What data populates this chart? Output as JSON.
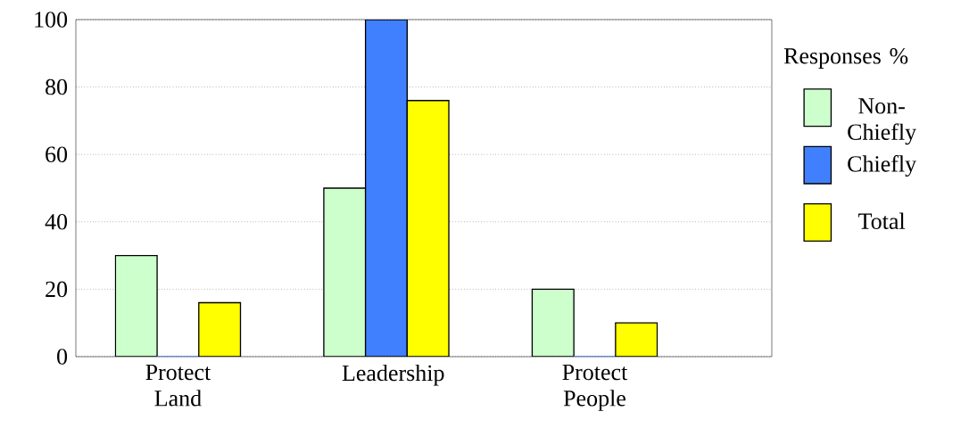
{
  "chart_data": {
    "type": "bar",
    "legend_title": "Responses %",
    "categories": [
      "Protect Land",
      "Leadership",
      "Protect People"
    ],
    "series": [
      {
        "name": "Non-Chiefly",
        "color": "#ccffcc",
        "values": [
          30,
          50,
          20
        ]
      },
      {
        "name": "Chiefly",
        "color": "#4080ff",
        "values": [
          0,
          100,
          0
        ]
      },
      {
        "name": "Total",
        "color": "#ffff00",
        "values": [
          16,
          76,
          10
        ]
      }
    ],
    "ylim": [
      0,
      100
    ],
    "yticks": [
      0,
      20,
      40,
      60,
      80,
      100
    ],
    "grid": "y",
    "legend": "right"
  }
}
